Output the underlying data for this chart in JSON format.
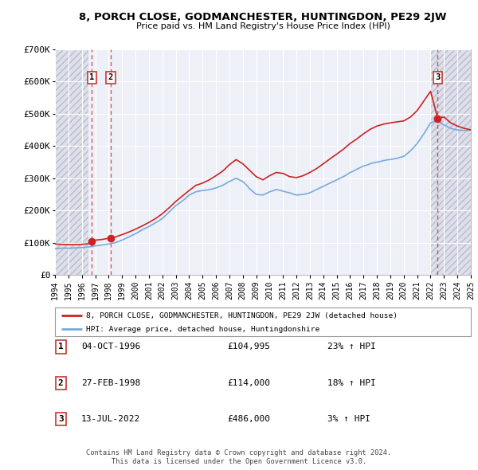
{
  "title": "8, PORCH CLOSE, GODMANCHESTER, HUNTINGDON, PE29 2JW",
  "subtitle": "Price paid vs. HM Land Registry's House Price Index (HPI)",
  "legend_line1": "8, PORCH CLOSE, GODMANCHESTER, HUNTINGDON, PE29 2JW (detached house)",
  "legend_line2": "HPI: Average price, detached house, Huntingdonshire",
  "footer1": "Contains HM Land Registry data © Crown copyright and database right 2024.",
  "footer2": "This data is licensed under the Open Government Licence v3.0.",
  "sale_points": [
    {
      "label": "1",
      "date": "04-OCT-1996",
      "price": 104995,
      "x": 1996.75,
      "price_str": "£104,995",
      "hpi_pct": "23% ↑ HPI"
    },
    {
      "label": "2",
      "date": "27-FEB-1998",
      "price": 114000,
      "x": 1998.15,
      "price_str": "£114,000",
      "hpi_pct": "18% ↑ HPI"
    },
    {
      "label": "3",
      "date": "13-JUL-2022",
      "price": 486000,
      "x": 2022.53,
      "price_str": "£486,000",
      "hpi_pct": "3% ↑ HPI"
    }
  ],
  "xmin": 1994,
  "xmax": 2025,
  "ymin": 0,
  "ymax": 700000,
  "yticks": [
    0,
    100000,
    200000,
    300000,
    400000,
    500000,
    600000,
    700000
  ],
  "ylabels": [
    "£0",
    "£100K",
    "£200K",
    "£300K",
    "£400K",
    "£500K",
    "£600K",
    "£700K"
  ],
  "background_color": "#ffffff",
  "plot_bg_color": "#eef0f8",
  "hatch_bg_color": "#dde0ea",
  "grid_color": "#ffffff",
  "red_line_color": "#cc2222",
  "blue_line_color": "#77aadd",
  "dashed_vline_color": "#cc3333",
  "hatch_end_x": 1996.5,
  "hatch_end_x2": 2022.0,
  "hpi_data_x": [
    1994.0,
    1994.25,
    1994.5,
    1994.75,
    1995.0,
    1995.25,
    1995.5,
    1995.75,
    1996.0,
    1996.25,
    1996.5,
    1996.75,
    1997.0,
    1997.25,
    1997.5,
    1997.75,
    1998.0,
    1998.25,
    1998.5,
    1998.75,
    1999.0,
    1999.25,
    1999.5,
    1999.75,
    2000.0,
    2000.25,
    2000.5,
    2000.75,
    2001.0,
    2001.25,
    2001.5,
    2001.75,
    2002.0,
    2002.25,
    2002.5,
    2002.75,
    2003.0,
    2003.25,
    2003.5,
    2003.75,
    2004.0,
    2004.25,
    2004.5,
    2004.75,
    2005.0,
    2005.25,
    2005.5,
    2005.75,
    2006.0,
    2006.25,
    2006.5,
    2006.75,
    2007.0,
    2007.25,
    2007.5,
    2007.75,
    2008.0,
    2008.25,
    2008.5,
    2008.75,
    2009.0,
    2009.25,
    2009.5,
    2009.75,
    2010.0,
    2010.25,
    2010.5,
    2010.75,
    2011.0,
    2011.25,
    2011.5,
    2011.75,
    2012.0,
    2012.25,
    2012.5,
    2012.75,
    2013.0,
    2013.25,
    2013.5,
    2013.75,
    2014.0,
    2014.25,
    2014.5,
    2014.75,
    2015.0,
    2015.25,
    2015.5,
    2015.75,
    2016.0,
    2016.25,
    2016.5,
    2016.75,
    2017.0,
    2017.25,
    2017.5,
    2017.75,
    2018.0,
    2018.25,
    2018.5,
    2018.75,
    2019.0,
    2019.25,
    2019.5,
    2019.75,
    2020.0,
    2020.25,
    2020.5,
    2020.75,
    2021.0,
    2021.25,
    2021.5,
    2021.75,
    2022.0,
    2022.25,
    2022.5,
    2022.75,
    2023.0,
    2023.25,
    2023.5,
    2023.75,
    2024.0,
    2024.25,
    2024.5,
    2024.75,
    2025.0
  ],
  "hpi_data_y": [
    82000,
    82500,
    83000,
    83500,
    83000,
    83500,
    84000,
    84500,
    85000,
    86000,
    87000,
    88500,
    90000,
    91500,
    93000,
    94500,
    96000,
    98000,
    100000,
    104000,
    108000,
    113000,
    118000,
    123000,
    128000,
    134000,
    140000,
    145000,
    150000,
    156000,
    162000,
    168500,
    175000,
    185000,
    195000,
    205000,
    215000,
    222000,
    230000,
    238000,
    248000,
    253000,
    258000,
    260000,
    262000,
    263000,
    265000,
    267000,
    270000,
    274000,
    278000,
    284000,
    290000,
    295000,
    300000,
    295000,
    290000,
    280000,
    268000,
    259000,
    250000,
    249000,
    248000,
    253000,
    258000,
    261000,
    265000,
    263000,
    260000,
    257000,
    255000,
    251000,
    248000,
    249000,
    250000,
    252000,
    255000,
    260000,
    265000,
    270000,
    275000,
    280000,
    285000,
    290000,
    295000,
    300000,
    305000,
    311000,
    318000,
    322000,
    328000,
    333000,
    338000,
    341000,
    345000,
    348000,
    350000,
    352000,
    355000,
    357000,
    358000,
    360000,
    362000,
    365000,
    368000,
    376000,
    385000,
    396000,
    408000,
    423000,
    438000,
    455000,
    472000,
    476000,
    480000,
    472000,
    465000,
    460000,
    455000,
    452000,
    450000,
    449000,
    448000,
    449000,
    450000
  ],
  "property_data_x": [
    1994.0,
    1994.5,
    1995.0,
    1995.5,
    1996.0,
    1996.5,
    1996.75,
    1997.0,
    1997.5,
    1997.75,
    1998.0,
    1998.15,
    1998.5,
    1999.0,
    1999.5,
    2000.0,
    2000.5,
    2001.0,
    2001.5,
    2002.0,
    2002.5,
    2003.0,
    2003.5,
    2004.0,
    2004.5,
    2005.0,
    2005.5,
    2006.0,
    2006.5,
    2007.0,
    2007.5,
    2008.0,
    2008.5,
    2009.0,
    2009.5,
    2010.0,
    2010.5,
    2011.0,
    2011.5,
    2012.0,
    2012.5,
    2013.0,
    2013.5,
    2014.0,
    2014.5,
    2015.0,
    2015.5,
    2016.0,
    2016.5,
    2017.0,
    2017.5,
    2018.0,
    2018.5,
    2019.0,
    2019.5,
    2020.0,
    2020.5,
    2021.0,
    2021.5,
    2022.0,
    2022.53,
    2023.0,
    2023.5,
    2024.0,
    2024.5,
    2025.0
  ],
  "property_data_y": [
    96000,
    95000,
    94000,
    94000,
    95000,
    97000,
    104995,
    108000,
    110000,
    112000,
    114000,
    114000,
    118000,
    125000,
    133000,
    142000,
    152000,
    163000,
    175000,
    190000,
    208000,
    228000,
    245000,
    262000,
    278000,
    285000,
    295000,
    308000,
    322000,
    342000,
    358000,
    345000,
    325000,
    305000,
    295000,
    308000,
    318000,
    315000,
    305000,
    302000,
    308000,
    318000,
    330000,
    345000,
    360000,
    375000,
    390000,
    408000,
    422000,
    438000,
    452000,
    462000,
    468000,
    472000,
    475000,
    478000,
    490000,
    510000,
    540000,
    570000,
    486000,
    490000,
    472000,
    462000,
    455000,
    450000
  ]
}
